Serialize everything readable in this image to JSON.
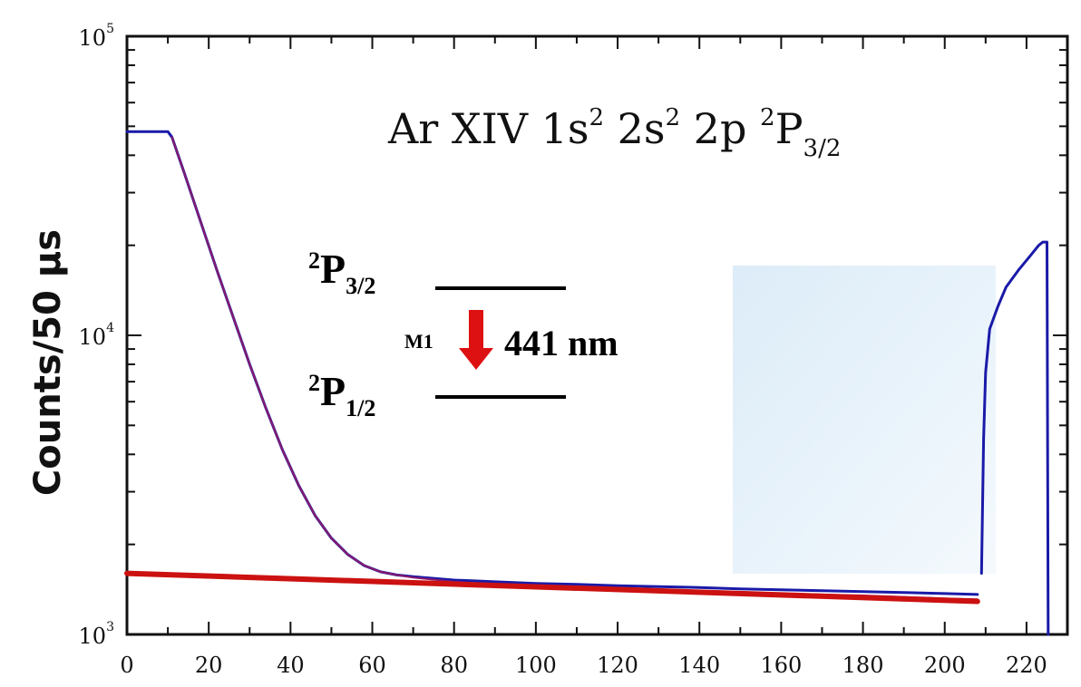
{
  "chart_data": {
    "type": "line",
    "title_parts": {
      "prefix": "Ar XIV 1s",
      "sup1": "2",
      "mid1": " 2s",
      "sup2": "2",
      "mid2": " 2p ",
      "sup3": "2",
      "main": "P",
      "sub": "3/2"
    },
    "xlabel": "",
    "ylabel": "Counts/50 µs",
    "yscale": "log",
    "xlim": [
      0,
      230
    ],
    "ylim": [
      1000,
      100000
    ],
    "x_ticks": [
      0,
      20,
      40,
      60,
      80,
      100,
      120,
      140,
      160,
      180,
      200,
      220
    ],
    "x_tick_labels": [
      "0",
      "20",
      "40",
      "60",
      "80",
      "100",
      "120",
      "140",
      "160",
      "180",
      "200",
      "220"
    ],
    "y_ticks": [
      1000,
      10000,
      100000
    ],
    "y_tick_labels": [
      {
        "base": "10",
        "exp": "3"
      },
      {
        "base": "10",
        "exp": "4"
      },
      {
        "base": "10",
        "exp": "5"
      }
    ],
    "series": [
      {
        "name": "",
        "color": "#1a1aa8",
        "style": "data",
        "x": [
          0,
          5,
          10,
          11,
          14,
          18,
          22,
          26,
          30,
          34,
          38,
          42,
          46,
          50,
          54,
          58,
          62,
          66,
          70,
          80,
          90,
          100,
          110,
          120,
          130,
          140,
          150,
          160,
          170,
          180,
          190,
          200,
          208
        ],
        "y": [
          48000,
          48000,
          48000,
          46000,
          35000,
          24000,
          16500,
          11500,
          8000,
          5700,
          4150,
          3150,
          2500,
          2100,
          1850,
          1700,
          1620,
          1580,
          1560,
          1520,
          1500,
          1480,
          1470,
          1455,
          1445,
          1435,
          1420,
          1410,
          1400,
          1390,
          1380,
          1370,
          1360
        ]
      },
      {
        "name": "",
        "color": "#1a1aa8",
        "style": "data",
        "x": [
          209,
          209.5,
          210,
          211,
          213,
          215,
          218,
          221,
          223,
          224,
          225,
          225.3
        ],
        "y": [
          1600,
          4500,
          7500,
          10500,
          12500,
          14500,
          16500,
          18500,
          20000,
          20500,
          20500,
          1000
        ]
      },
      {
        "name": "",
        "color": "#8b1a6b",
        "style": "fit",
        "x": [
          11,
          14,
          18,
          22,
          26,
          30,
          34,
          38,
          42,
          46,
          50,
          54,
          58,
          62,
          66,
          70,
          80,
          90,
          100,
          120,
          140,
          160,
          180,
          200,
          208
        ],
        "y": [
          46000,
          35000,
          24000,
          16500,
          11500,
          8000,
          5700,
          4150,
          3150,
          2500,
          2100,
          1850,
          1700,
          1620,
          1580,
          1550,
          1500,
          1470,
          1450,
          1420,
          1395,
          1370,
          1350,
          1320,
          1310
        ]
      },
      {
        "name": "",
        "color": "#cc1111",
        "style": "background",
        "x": [
          0,
          208
        ],
        "y": [
          1600,
          1290
        ]
      }
    ],
    "grid": false,
    "annotations": {
      "upper_level": {
        "main": "P",
        "pre": "2",
        "sub": "3/2"
      },
      "lower_level": {
        "main": "P",
        "pre": "2",
        "sub": "1/2"
      },
      "transition_type": "M1",
      "wavelength": "441 nm",
      "arrow_color": "#dd1111"
    }
  }
}
